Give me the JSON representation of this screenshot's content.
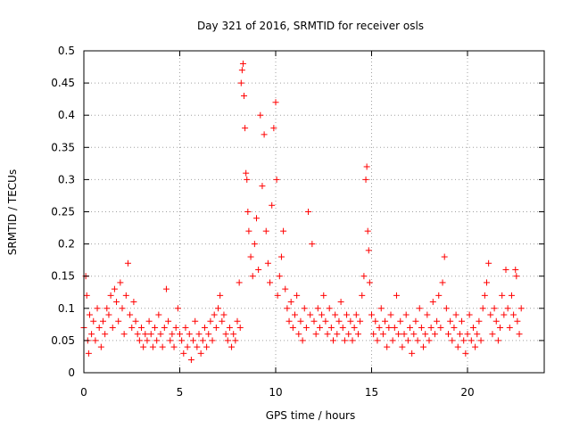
{
  "chart_data": {
    "type": "scatter",
    "title": "Day 321 of 2016, SRMTID for receiver osls",
    "xlabel": "GPS time / hours",
    "ylabel": "SRMTID / TECUs",
    "xlim": [
      0,
      24
    ],
    "ylim": [
      0,
      0.5
    ],
    "grid": true,
    "marker": "+",
    "color": "#ff0000",
    "x_ticks": [
      {
        "value": 0,
        "label": "0"
      },
      {
        "value": 5,
        "label": "5"
      },
      {
        "value": 10,
        "label": "10"
      },
      {
        "value": 15,
        "label": "15"
      },
      {
        "value": 20,
        "label": "20"
      }
    ],
    "y_ticks": [
      {
        "value": 0,
        "label": "0"
      },
      {
        "value": 0.05,
        "label": "0.05"
      },
      {
        "value": 0.1,
        "label": "0.1"
      },
      {
        "value": 0.15,
        "label": "0.15"
      },
      {
        "value": 0.2,
        "label": "0.2"
      },
      {
        "value": 0.25,
        "label": "0.25"
      },
      {
        "value": 0.3,
        "label": "0.3"
      },
      {
        "value": 0.35,
        "label": "0.35"
      },
      {
        "value": 0.4,
        "label": "0.4"
      },
      {
        "value": 0.45,
        "label": "0.45"
      },
      {
        "value": 0.5,
        "label": "0.5"
      }
    ],
    "series": [
      {
        "name": "SRMTID",
        "points": [
          [
            0.0,
            0.07
          ],
          [
            0.1,
            0.15
          ],
          [
            0.15,
            0.12
          ],
          [
            0.2,
            0.05
          ],
          [
            0.25,
            0.03
          ],
          [
            0.3,
            0.09
          ],
          [
            0.4,
            0.06
          ],
          [
            0.5,
            0.08
          ],
          [
            0.6,
            0.05
          ],
          [
            0.7,
            0.1
          ],
          [
            0.8,
            0.07
          ],
          [
            0.9,
            0.04
          ],
          [
            1.0,
            0.08
          ],
          [
            1.1,
            0.06
          ],
          [
            1.2,
            0.1
          ],
          [
            1.3,
            0.09
          ],
          [
            1.4,
            0.12
          ],
          [
            1.5,
            0.07
          ],
          [
            1.6,
            0.13
          ],
          [
            1.7,
            0.11
          ],
          [
            1.8,
            0.08
          ],
          [
            1.9,
            0.14
          ],
          [
            2.0,
            0.1
          ],
          [
            2.1,
            0.06
          ],
          [
            2.2,
            0.12
          ],
          [
            2.3,
            0.17
          ],
          [
            2.4,
            0.09
          ],
          [
            2.5,
            0.07
          ],
          [
            2.6,
            0.11
          ],
          [
            2.7,
            0.08
          ],
          [
            2.8,
            0.06
          ],
          [
            2.9,
            0.05
          ],
          [
            3.0,
            0.07
          ],
          [
            3.1,
            0.04
          ],
          [
            3.2,
            0.06
          ],
          [
            3.3,
            0.05
          ],
          [
            3.4,
            0.08
          ],
          [
            3.5,
            0.06
          ],
          [
            3.6,
            0.04
          ],
          [
            3.7,
            0.07
          ],
          [
            3.8,
            0.05
          ],
          [
            3.9,
            0.09
          ],
          [
            4.0,
            0.06
          ],
          [
            4.1,
            0.04
          ],
          [
            4.2,
            0.07
          ],
          [
            4.3,
            0.13
          ],
          [
            4.4,
            0.08
          ],
          [
            4.5,
            0.05
          ],
          [
            4.6,
            0.06
          ],
          [
            4.7,
            0.04
          ],
          [
            4.8,
            0.07
          ],
          [
            4.9,
            0.1
          ],
          [
            5.0,
            0.06
          ],
          [
            5.1,
            0.05
          ],
          [
            5.2,
            0.03
          ],
          [
            5.3,
            0.07
          ],
          [
            5.4,
            0.04
          ],
          [
            5.5,
            0.06
          ],
          [
            5.6,
            0.02
          ],
          [
            5.7,
            0.05
          ],
          [
            5.8,
            0.08
          ],
          [
            5.9,
            0.04
          ],
          [
            6.0,
            0.06
          ],
          [
            6.1,
            0.03
          ],
          [
            6.2,
            0.05
          ],
          [
            6.3,
            0.07
          ],
          [
            6.4,
            0.04
          ],
          [
            6.5,
            0.06
          ],
          [
            6.6,
            0.08
          ],
          [
            6.7,
            0.05
          ],
          [
            6.8,
            0.09
          ],
          [
            6.9,
            0.07
          ],
          [
            7.0,
            0.1
          ],
          [
            7.1,
            0.12
          ],
          [
            7.2,
            0.08
          ],
          [
            7.3,
            0.09
          ],
          [
            7.4,
            0.06
          ],
          [
            7.5,
            0.05
          ],
          [
            7.6,
            0.07
          ],
          [
            7.7,
            0.04
          ],
          [
            7.8,
            0.06
          ],
          [
            7.9,
            0.05
          ],
          [
            8.0,
            0.08
          ],
          [
            8.1,
            0.14
          ],
          [
            8.15,
            0.07
          ],
          [
            8.2,
            0.45
          ],
          [
            8.25,
            0.47
          ],
          [
            8.3,
            0.48
          ],
          [
            8.35,
            0.43
          ],
          [
            8.4,
            0.38
          ],
          [
            8.45,
            0.31
          ],
          [
            8.5,
            0.3
          ],
          [
            8.55,
            0.25
          ],
          [
            8.6,
            0.22
          ],
          [
            8.7,
            0.18
          ],
          [
            8.8,
            0.15
          ],
          [
            8.9,
            0.2
          ],
          [
            9.0,
            0.24
          ],
          [
            9.1,
            0.16
          ],
          [
            9.2,
            0.4
          ],
          [
            9.3,
            0.29
          ],
          [
            9.4,
            0.37
          ],
          [
            9.5,
            0.22
          ],
          [
            9.6,
            0.17
          ],
          [
            9.7,
            0.14
          ],
          [
            9.8,
            0.26
          ],
          [
            9.9,
            0.38
          ],
          [
            10.0,
            0.42
          ],
          [
            10.05,
            0.3
          ],
          [
            10.1,
            0.12
          ],
          [
            10.2,
            0.15
          ],
          [
            10.3,
            0.18
          ],
          [
            10.4,
            0.22
          ],
          [
            10.5,
            0.13
          ],
          [
            10.6,
            0.1
          ],
          [
            10.7,
            0.08
          ],
          [
            10.8,
            0.11
          ],
          [
            10.9,
            0.07
          ],
          [
            11.0,
            0.09
          ],
          [
            11.1,
            0.12
          ],
          [
            11.2,
            0.06
          ],
          [
            11.3,
            0.08
          ],
          [
            11.4,
            0.05
          ],
          [
            11.5,
            0.1
          ],
          [
            11.6,
            0.07
          ],
          [
            11.7,
            0.25
          ],
          [
            11.8,
            0.09
          ],
          [
            11.9,
            0.2
          ],
          [
            12.0,
            0.08
          ],
          [
            12.1,
            0.06
          ],
          [
            12.2,
            0.1
          ],
          [
            12.3,
            0.07
          ],
          [
            12.4,
            0.09
          ],
          [
            12.5,
            0.12
          ],
          [
            12.6,
            0.08
          ],
          [
            12.7,
            0.06
          ],
          [
            12.8,
            0.1
          ],
          [
            12.9,
            0.07
          ],
          [
            13.0,
            0.05
          ],
          [
            13.1,
            0.09
          ],
          [
            13.2,
            0.06
          ],
          [
            13.3,
            0.08
          ],
          [
            13.4,
            0.11
          ],
          [
            13.5,
            0.07
          ],
          [
            13.6,
            0.05
          ],
          [
            13.7,
            0.09
          ],
          [
            13.8,
            0.06
          ],
          [
            13.9,
            0.08
          ],
          [
            14.0,
            0.05
          ],
          [
            14.1,
            0.07
          ],
          [
            14.2,
            0.09
          ],
          [
            14.3,
            0.06
          ],
          [
            14.4,
            0.08
          ],
          [
            14.5,
            0.12
          ],
          [
            14.6,
            0.15
          ],
          [
            14.7,
            0.3
          ],
          [
            14.75,
            0.32
          ],
          [
            14.8,
            0.22
          ],
          [
            14.85,
            0.19
          ],
          [
            14.9,
            0.14
          ],
          [
            15.0,
            0.09
          ],
          [
            15.1,
            0.06
          ],
          [
            15.2,
            0.08
          ],
          [
            15.3,
            0.05
          ],
          [
            15.4,
            0.07
          ],
          [
            15.5,
            0.1
          ],
          [
            15.6,
            0.06
          ],
          [
            15.7,
            0.08
          ],
          [
            15.8,
            0.04
          ],
          [
            15.9,
            0.07
          ],
          [
            16.0,
            0.09
          ],
          [
            16.1,
            0.05
          ],
          [
            16.2,
            0.07
          ],
          [
            16.3,
            0.12
          ],
          [
            16.4,
            0.06
          ],
          [
            16.5,
            0.08
          ],
          [
            16.6,
            0.04
          ],
          [
            16.7,
            0.06
          ],
          [
            16.8,
            0.09
          ],
          [
            16.9,
            0.05
          ],
          [
            17.0,
            0.07
          ],
          [
            17.1,
            0.03
          ],
          [
            17.2,
            0.06
          ],
          [
            17.3,
            0.08
          ],
          [
            17.4,
            0.05
          ],
          [
            17.5,
            0.1
          ],
          [
            17.6,
            0.07
          ],
          [
            17.7,
            0.04
          ],
          [
            17.8,
            0.06
          ],
          [
            17.9,
            0.09
          ],
          [
            18.0,
            0.05
          ],
          [
            18.1,
            0.07
          ],
          [
            18.2,
            0.11
          ],
          [
            18.3,
            0.06
          ],
          [
            18.4,
            0.08
          ],
          [
            18.5,
            0.12
          ],
          [
            18.6,
            0.07
          ],
          [
            18.7,
            0.14
          ],
          [
            18.8,
            0.18
          ],
          [
            18.9,
            0.1
          ],
          [
            19.0,
            0.06
          ],
          [
            19.1,
            0.08
          ],
          [
            19.2,
            0.05
          ],
          [
            19.3,
            0.07
          ],
          [
            19.4,
            0.09
          ],
          [
            19.5,
            0.04
          ],
          [
            19.6,
            0.06
          ],
          [
            19.7,
            0.08
          ],
          [
            19.8,
            0.05
          ],
          [
            19.9,
            0.03
          ],
          [
            20.0,
            0.06
          ],
          [
            20.1,
            0.09
          ],
          [
            20.2,
            0.05
          ],
          [
            20.3,
            0.07
          ],
          [
            20.4,
            0.04
          ],
          [
            20.5,
            0.06
          ],
          [
            20.6,
            0.08
          ],
          [
            20.7,
            0.05
          ],
          [
            20.8,
            0.1
          ],
          [
            20.9,
            0.12
          ],
          [
            21.0,
            0.14
          ],
          [
            21.1,
            0.17
          ],
          [
            21.2,
            0.09
          ],
          [
            21.3,
            0.06
          ],
          [
            21.4,
            0.1
          ],
          [
            21.5,
            0.08
          ],
          [
            21.6,
            0.05
          ],
          [
            21.7,
            0.07
          ],
          [
            21.8,
            0.12
          ],
          [
            21.9,
            0.09
          ],
          [
            22.0,
            0.16
          ],
          [
            22.1,
            0.1
          ],
          [
            22.2,
            0.07
          ],
          [
            22.3,
            0.12
          ],
          [
            22.4,
            0.09
          ],
          [
            22.5,
            0.16
          ],
          [
            22.55,
            0.15
          ],
          [
            22.6,
            0.08
          ],
          [
            22.7,
            0.06
          ],
          [
            22.8,
            0.1
          ]
        ]
      }
    ]
  }
}
